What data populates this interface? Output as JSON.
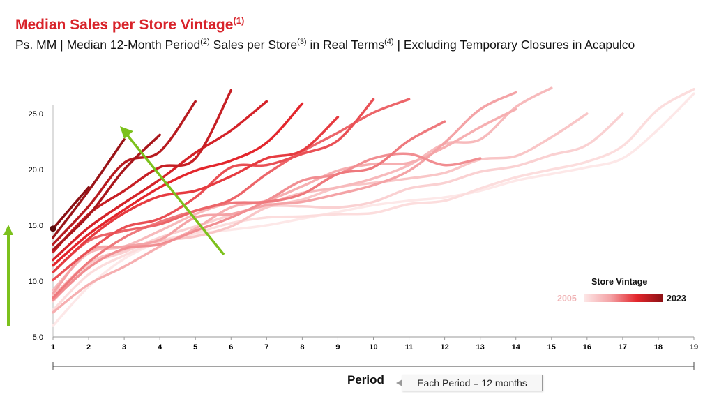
{
  "header": {
    "title": "Median Sales per Store Vintage",
    "title_sup": "(1)",
    "subtitle_parts": [
      "Ps. MM | Median 12-Month Period",
      "(2)",
      " Sales per Store",
      "(3)",
      " in Real Terms",
      "(4)",
      " | "
    ],
    "subtitle_underlined": "Excluding Temporary Closures in Acapulco"
  },
  "colors": {
    "title": "#d8232a",
    "vintage_low": "#fde8e8",
    "vintage_high": "#8b1014",
    "arrow": "#7cc11c"
  },
  "legend": {
    "title": "Store Vintage",
    "min_label": "2005",
    "max_label": "2023"
  },
  "axis": {
    "period_label": "Period",
    "note": "Each Period = 12 months"
  },
  "chart_data": {
    "type": "line",
    "title": "Median Sales per Store Vintage",
    "xlabel": "Period",
    "ylabel": "",
    "xlim": [
      1,
      19
    ],
    "ylim": [
      5,
      30
    ],
    "x_ticks": [
      "1",
      "2",
      "3",
      "4",
      "5",
      "6",
      "7",
      "8",
      "9",
      "10",
      "11",
      "12",
      "13",
      "14",
      "15",
      "16",
      "17",
      "18",
      "19"
    ],
    "y_ticks": [
      "5.0",
      "10.0",
      "15.0",
      "20.0",
      "25.0"
    ],
    "grid": false,
    "legend_position": "bottom-right",
    "series": [
      {
        "vintage": 2005,
        "values": [
          6.0,
          9.5,
          12.0,
          13.5,
          14.2,
          14.6,
          15.0,
          15.6,
          16.2,
          16.8,
          17.2,
          17.5,
          18.1,
          19.0,
          19.6,
          20.2,
          21.0,
          23.6,
          26.8
        ]
      },
      {
        "vintage": 2006,
        "values": [
          7.4,
          10.6,
          12.3,
          13.6,
          14.3,
          15.2,
          15.7,
          15.8,
          16.0,
          16.1,
          16.9,
          17.2,
          18.3,
          19.3,
          20.0,
          20.7,
          22.1,
          25.4,
          27.2
        ]
      },
      {
        "vintage": 2007,
        "values": [
          8.2,
          11.4,
          12.6,
          13.9,
          14.9,
          15.9,
          16.7,
          16.7,
          16.6,
          17.1,
          18.3,
          18.8,
          19.8,
          20.3,
          21.3,
          22.2,
          25.0
        ]
      },
      {
        "vintage": 2008,
        "values": [
          8.7,
          11.6,
          12.8,
          13.6,
          14.0,
          14.9,
          16.6,
          17.3,
          18.4,
          18.8,
          19.2,
          19.7,
          20.9,
          21.2,
          22.9,
          25.0
        ]
      },
      {
        "vintage": 2009,
        "values": [
          9.2,
          12.5,
          13.1,
          14.5,
          16.0,
          17.0,
          17.0,
          17.9,
          18.4,
          19.2,
          20.4,
          22.3,
          22.7,
          25.6,
          27.3
        ]
      },
      {
        "vintage": 2010,
        "values": [
          7.2,
          9.7,
          11.3,
          13.1,
          14.7,
          16.6,
          17.2,
          18.5,
          19.9,
          20.5,
          20.6,
          22.0,
          23.8,
          25.4
        ]
      },
      {
        "vintage": 2011,
        "values": [
          8.9,
          12.7,
          13.1,
          13.7,
          15.7,
          16.0,
          16.8,
          17.1,
          17.8,
          18.6,
          19.9,
          22.4,
          25.4,
          26.9
        ]
      },
      {
        "vintage": 2012,
        "values": [
          8.3,
          11.2,
          12.9,
          13.3,
          14.5,
          15.7,
          17.2,
          19.0,
          19.6,
          21.0,
          21.4,
          20.4,
          21.0
        ]
      },
      {
        "vintage": 2013,
        "values": [
          8.5,
          11.7,
          13.9,
          15.3,
          16.3,
          17.0,
          17.1,
          17.8,
          19.6,
          20.2,
          22.6,
          24.3
        ]
      },
      {
        "vintage": 2014,
        "values": [
          10.8,
          13.6,
          14.5,
          15.1,
          16.3,
          17.3,
          19.6,
          21.6,
          23.3,
          25.1,
          26.3
        ]
      },
      {
        "vintage": 2015,
        "values": [
          10.1,
          12.7,
          14.8,
          15.6,
          17.5,
          20.2,
          20.4,
          21.4,
          22.6,
          26.3
        ]
      },
      {
        "vintage": 2016,
        "values": [
          10.8,
          13.8,
          16.1,
          17.6,
          18.1,
          19.4,
          21.0,
          21.7,
          24.7
        ]
      },
      {
        "vintage": 2017,
        "values": [
          11.4,
          14.2,
          16.4,
          18.4,
          19.9,
          20.8,
          22.4,
          25.9
        ]
      },
      {
        "vintage": 2018,
        "values": [
          11.9,
          14.8,
          17.0,
          19.1,
          21.5,
          23.5,
          26.1
        ]
      },
      {
        "vintage": 2019,
        "values": [
          12.6,
          16.0,
          18.1,
          20.2,
          21.0,
          27.1
        ]
      },
      {
        "vintage": 2020,
        "values": [
          13.3,
          16.7,
          20.6,
          21.6,
          26.1
        ]
      },
      {
        "vintage": 2021,
        "values": [
          12.8,
          15.9,
          20.0,
          23.1
        ]
      },
      {
        "vintage": 2022,
        "values": [
          13.9,
          18.1,
          22.7
        ]
      },
      {
        "vintage": 2023,
        "values": [
          14.7,
          18.4
        ]
      }
    ]
  }
}
